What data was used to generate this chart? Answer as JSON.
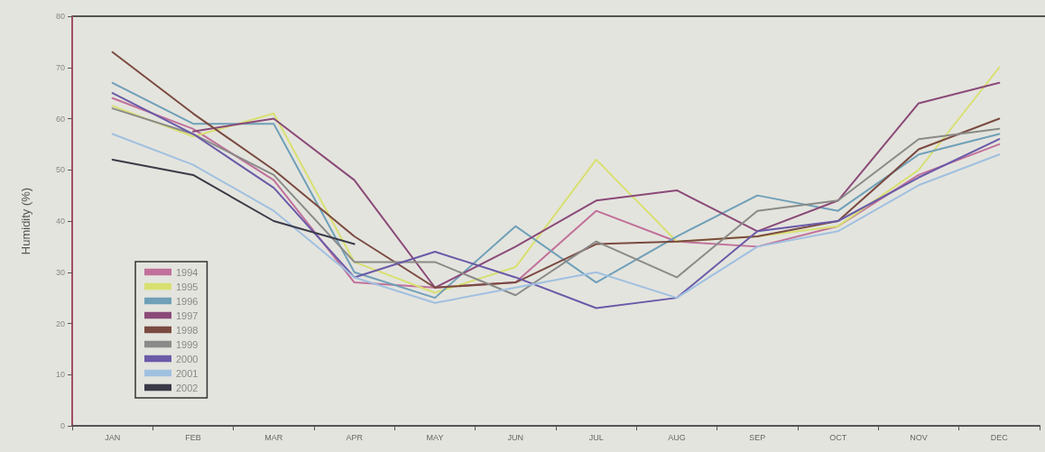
{
  "chart_data": {
    "type": "line",
    "ylabel": "Humidity (%)",
    "categories": [
      "JAN",
      "FEB",
      "MAR",
      "APR",
      "MAY",
      "JUN",
      "JUL",
      "AUG",
      "SEP",
      "OCT",
      "NOV",
      "DEC"
    ],
    "series": [
      {
        "name": "1994",
        "color": "#c0709a",
        "values": [
          64,
          58,
          48,
          28,
          27,
          28,
          42,
          36,
          35,
          39,
          49,
          55
        ]
      },
      {
        "name": "1995",
        "color": "#d8e070",
        "values": [
          62.5,
          56.5,
          61,
          32,
          26,
          31,
          52,
          36,
          37,
          39,
          50,
          70
        ]
      },
      {
        "name": "1996",
        "color": "#6fa0b8",
        "values": [
          67,
          59,
          59,
          30,
          25,
          39,
          28,
          37,
          45,
          42,
          53,
          57
        ]
      },
      {
        "name": "1997",
        "color": "#8a4a78",
        "values": [
          null,
          57.5,
          60,
          48,
          27,
          35,
          44,
          46,
          38,
          44,
          63,
          67
        ]
      },
      {
        "name": "1998",
        "color": "#7a4a40",
        "values": [
          73,
          61,
          50,
          37,
          27,
          28,
          35.5,
          36,
          37,
          40,
          54,
          60
        ]
      },
      {
        "name": "1999",
        "color": "#8a8a88",
        "values": [
          62,
          57,
          49,
          32,
          32,
          25.5,
          36,
          29,
          42,
          44,
          56,
          58
        ]
      },
      {
        "name": "2000",
        "color": "#6a5aa8",
        "values": [
          65,
          57,
          46.5,
          29,
          34,
          29,
          23,
          25,
          38,
          40,
          48.5,
          56
        ]
      },
      {
        "name": "2001",
        "color": "#a0c0e0",
        "values": [
          57,
          51,
          42,
          29,
          24,
          27,
          30,
          25,
          35,
          38,
          47,
          53
        ]
      },
      {
        "name": "2002",
        "color": "#3a3a48",
        "values": [
          52,
          49,
          40,
          35.5,
          null,
          null,
          null,
          null,
          null,
          null,
          null,
          null
        ]
      }
    ],
    "ylim": [
      0,
      80
    ],
    "yticks": [
      0,
      10,
      20,
      30,
      40,
      50,
      60,
      70,
      80
    ],
    "grid": false,
    "legend": "bottom left",
    "marker": "none",
    "line_style": "solid"
  }
}
